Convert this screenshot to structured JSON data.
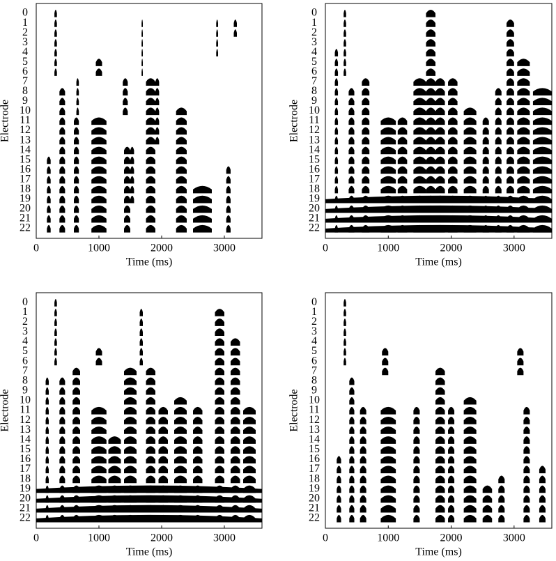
{
  "chart_data": [
    {
      "type": "electrodogram",
      "x_label": "Time (ms)",
      "y_label": "Electrode",
      "color": "#000000",
      "xlim": [
        0,
        3600
      ],
      "xticks": [
        0,
        1000,
        2000,
        3000
      ],
      "ylim": [
        -1,
        23
      ],
      "yticks": [
        0,
        1,
        2,
        3,
        4,
        5,
        6,
        7,
        8,
        9,
        10,
        11,
        12,
        13,
        14,
        15,
        16,
        17,
        18,
        19,
        20,
        21,
        22
      ],
      "bursts": [
        [
          290,
          330,
          0,
          6
        ],
        [
          170,
          230,
          15,
          22
        ],
        [
          370,
          460,
          8,
          22
        ],
        [
          600,
          680,
          11,
          22
        ],
        [
          640,
          680,
          7,
          10
        ],
        [
          880,
          1120,
          11,
          22
        ],
        [
          950,
          1050,
          5,
          6
        ],
        [
          1380,
          1460,
          7,
          10
        ],
        [
          1400,
          1500,
          14,
          22
        ],
        [
          1500,
          1560,
          14,
          19
        ],
        [
          1680,
          1700,
          1,
          6
        ],
        [
          1750,
          1900,
          7,
          22
        ],
        [
          1900,
          1960,
          7,
          13
        ],
        [
          2230,
          2400,
          10,
          22
        ],
        [
          2500,
          2800,
          18,
          22
        ],
        [
          2870,
          2900,
          1,
          4
        ],
        [
          3030,
          3100,
          16,
          22
        ],
        [
          3150,
          3200,
          1,
          2
        ]
      ]
    },
    {
      "type": "electrodogram",
      "x_label": "Time (ms)",
      "y_label": "Electrode",
      "color": "#000000",
      "xlim": [
        0,
        3600
      ],
      "xticks": [
        0,
        1000,
        2000,
        3000
      ],
      "ylim": [
        -1,
        23
      ],
      "yticks": [
        0,
        1,
        2,
        3,
        4,
        5,
        6,
        7,
        8,
        9,
        10,
        11,
        12,
        13,
        14,
        15,
        16,
        17,
        18,
        19,
        20,
        21,
        22
      ],
      "bursts": [
        [
          290,
          330,
          0,
          6
        ],
        [
          150,
          200,
          4,
          22
        ],
        [
          370,
          460,
          8,
          22
        ],
        [
          580,
          700,
          7,
          22
        ],
        [
          880,
          1120,
          11,
          22
        ],
        [
          1150,
          1300,
          11,
          22
        ],
        [
          1400,
          1600,
          7,
          22
        ],
        [
          1600,
          1750,
          0,
          22
        ],
        [
          1750,
          1900,
          7,
          22
        ],
        [
          1950,
          2100,
          7,
          22
        ],
        [
          2200,
          2400,
          10,
          22
        ],
        [
          2500,
          2600,
          11,
          22
        ],
        [
          2700,
          2800,
          8,
          22
        ],
        [
          2880,
          3000,
          1,
          22
        ],
        [
          3050,
          3250,
          5,
          22
        ],
        [
          3300,
          3600,
          8,
          22
        ],
        [
          0,
          3600,
          19,
          22
        ]
      ]
    },
    {
      "type": "electrodogram",
      "x_label": "Time (ms)",
      "y_label": "Electrode",
      "color": "#000000",
      "xlim": [
        0,
        3600
      ],
      "xticks": [
        0,
        1000,
        2000,
        3000
      ],
      "ylim": [
        -1,
        23
      ],
      "yticks": [
        0,
        1,
        2,
        3,
        4,
        5,
        6,
        7,
        8,
        9,
        10,
        11,
        12,
        13,
        14,
        15,
        16,
        17,
        18,
        19,
        20,
        21,
        22
      ],
      "bursts": [
        [
          290,
          330,
          0,
          6
        ],
        [
          150,
          200,
          8,
          22
        ],
        [
          370,
          460,
          8,
          22
        ],
        [
          580,
          700,
          7,
          22
        ],
        [
          880,
          1120,
          11,
          22
        ],
        [
          950,
          1050,
          5,
          6
        ],
        [
          1150,
          1350,
          14,
          22
        ],
        [
          1400,
          1600,
          7,
          22
        ],
        [
          1650,
          1700,
          1,
          6
        ],
        [
          1750,
          1900,
          7,
          22
        ],
        [
          1950,
          2100,
          11,
          22
        ],
        [
          2200,
          2400,
          10,
          22
        ],
        [
          2500,
          2650,
          11,
          22
        ],
        [
          2850,
          3000,
          1,
          22
        ],
        [
          3100,
          3250,
          4,
          22
        ],
        [
          3300,
          3500,
          11,
          22
        ],
        [
          0,
          3600,
          19,
          22
        ]
      ]
    },
    {
      "type": "electrodogram",
      "x_label": "Time (ms)",
      "y_label": "Electrode",
      "color": "#000000",
      "xlim": [
        0,
        3600
      ],
      "xticks": [
        0,
        1000,
        2000,
        3000
      ],
      "ylim": [
        -1,
        23
      ],
      "yticks": [
        0,
        1,
        2,
        3,
        4,
        5,
        6,
        7,
        8,
        9,
        10,
        11,
        12,
        13,
        14,
        15,
        16,
        17,
        18,
        19,
        20,
        21,
        22
      ],
      "bursts": [
        [
          290,
          330,
          0,
          6
        ],
        [
          180,
          250,
          16,
          22
        ],
        [
          380,
          460,
          8,
          22
        ],
        [
          550,
          650,
          11,
          22
        ],
        [
          880,
          1120,
          11,
          22
        ],
        [
          900,
          1000,
          5,
          7
        ],
        [
          1400,
          1500,
          11,
          22
        ],
        [
          1750,
          1900,
          7,
          22
        ],
        [
          1950,
          2050,
          11,
          22
        ],
        [
          2200,
          2400,
          10,
          22
        ],
        [
          2500,
          2650,
          19,
          22
        ],
        [
          2750,
          2850,
          18,
          22
        ],
        [
          3050,
          3150,
          5,
          7
        ],
        [
          3150,
          3250,
          11,
          22
        ],
        [
          3400,
          3500,
          17,
          22
        ]
      ]
    }
  ]
}
